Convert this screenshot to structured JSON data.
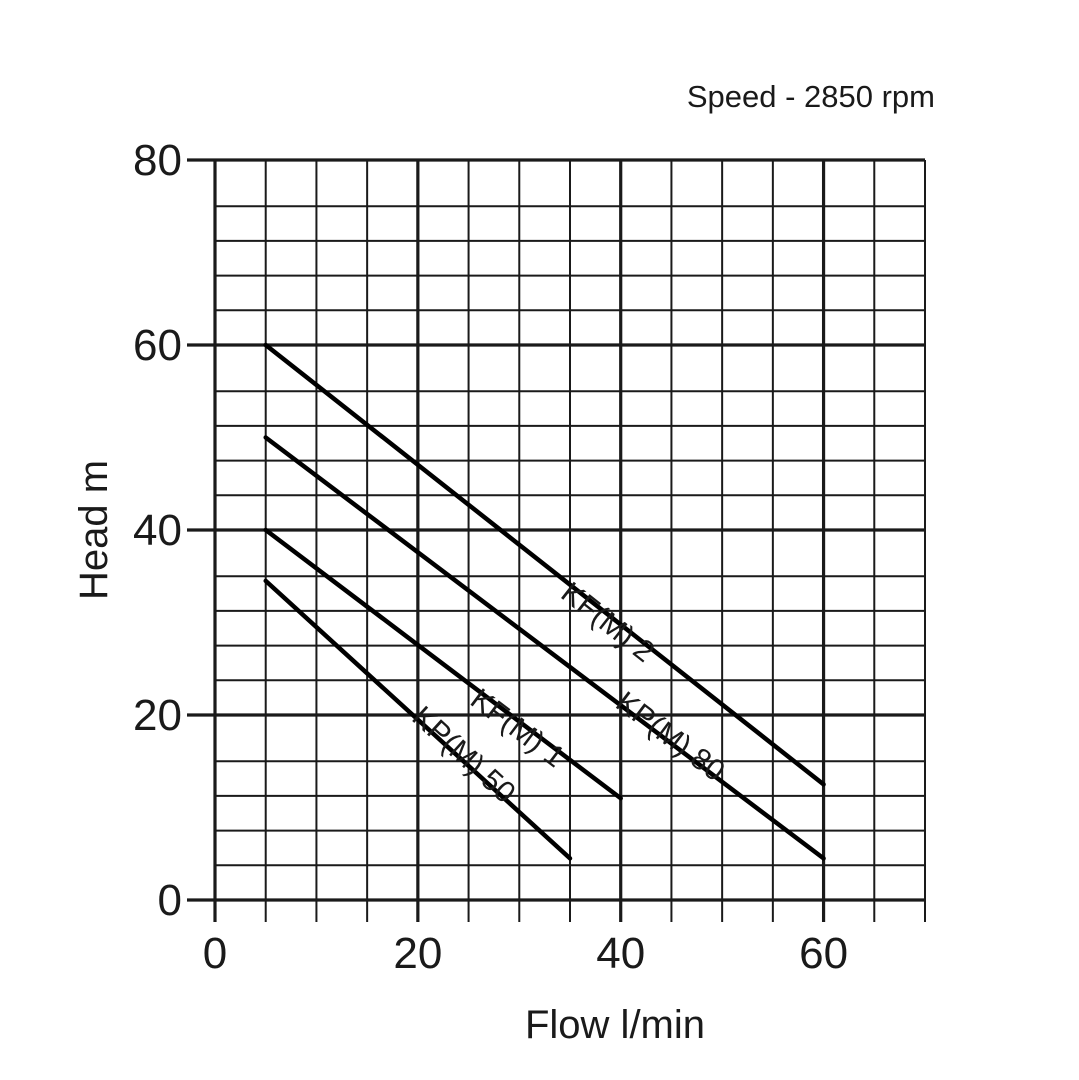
{
  "chart_data": {
    "type": "line",
    "subtitle": "Speed - 2850 rpm",
    "xlabel": "Flow l/min",
    "ylabel": "Head m",
    "xlim": [
      0,
      70
    ],
    "ylim": [
      0,
      80
    ],
    "x_ticks": [
      "0",
      "20",
      "40",
      "60"
    ],
    "y_ticks": [
      "0",
      "20",
      "40",
      "60",
      "80"
    ],
    "grid": true,
    "legend": "none",
    "series": [
      {
        "name": "KF(M) 2",
        "x": [
          5,
          60
        ],
        "y": [
          60,
          12.5
        ]
      },
      {
        "name": "KF(M) 1",
        "x": [
          5,
          40
        ],
        "y": [
          40,
          11
        ]
      },
      {
        "name": "KP(M) 80",
        "x": [
          5,
          60
        ],
        "y": [
          50,
          4.5
        ]
      },
      {
        "name": "KP(M) 50",
        "x": [
          5,
          35
        ],
        "y": [
          34.5,
          4.5
        ]
      }
    ]
  }
}
